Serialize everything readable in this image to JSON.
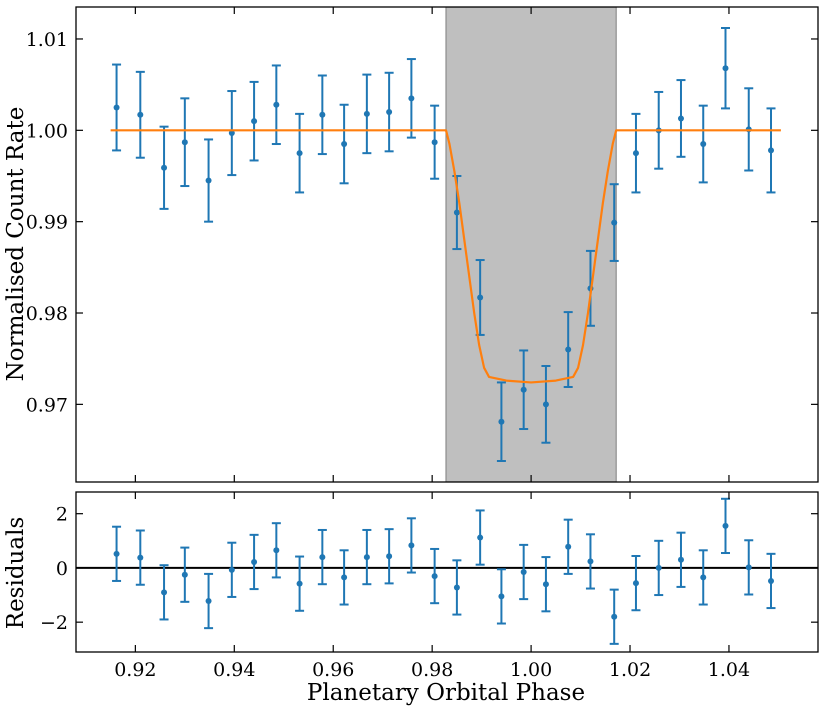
{
  "chart_data": [
    {
      "type": "scatter",
      "title": "",
      "xlabel": "Planetary Orbital Phase",
      "ylabel": "Normalised Count Rate",
      "xlim": [
        0.908,
        1.058
      ],
      "ylim": [
        0.9615,
        1.0135
      ],
      "xticks": [
        0.92,
        0.94,
        0.96,
        0.98,
        1.0,
        1.02,
        1.04
      ],
      "xtick_labels": [
        "0.92",
        "0.94",
        "0.96",
        "0.98",
        "1.00",
        "1.02",
        "1.04"
      ],
      "yticks": [
        0.97,
        0.98,
        0.99,
        1.0,
        1.01
      ],
      "ytick_labels": [
        "0.97",
        "0.98",
        "0.99",
        "1.00",
        "1.01"
      ],
      "shaded_region": {
        "x": [
          0.9828,
          1.0172
        ],
        "color": "#bfbfbf"
      },
      "series": [
        {
          "kind": "errorbar",
          "color": "#1f77b4",
          "x": [
            0.9162,
            0.921,
            0.9258,
            0.93,
            0.9348,
            0.9395,
            0.944,
            0.9485,
            0.9532,
            0.9578,
            0.9622,
            0.9668,
            0.9713,
            0.9758,
            0.9805,
            0.985,
            0.9897,
            0.994,
            0.9985,
            1.003,
            1.0075,
            1.012,
            1.0168,
            1.0212,
            1.0258,
            1.0303,
            1.0348,
            1.0393,
            1.044,
            1.0485
          ],
          "y": [
            1.0025,
            1.0017,
            0.9959,
            0.9987,
            0.9945,
            0.9997,
            1.001,
            1.0028,
            0.9975,
            1.0017,
            0.9985,
            1.0018,
            1.002,
            1.0035,
            0.9987,
            0.991,
            0.9817,
            0.9681,
            0.9716,
            0.97,
            0.976,
            0.9827,
            0.9899,
            0.9975,
            1.0,
            1.0013,
            0.9985,
            1.0068,
            1.0001,
            0.9978
          ],
          "yerr": [
            0.0047,
            0.0047,
            0.0045,
            0.0048,
            0.0045,
            0.0046,
            0.0043,
            0.0043,
            0.0043,
            0.0043,
            0.0043,
            0.0043,
            0.0043,
            0.0043,
            0.004,
            0.004,
            0.0041,
            0.0043,
            0.0043,
            0.0042,
            0.0041,
            0.0041,
            0.0042,
            0.0043,
            0.0042,
            0.0042,
            0.0042,
            0.0044,
            0.0045,
            0.0046
          ]
        },
        {
          "kind": "line",
          "color": "#ff7f0e",
          "x": [
            0.915,
            0.9828,
            0.9835,
            0.9845,
            0.9855,
            0.9865,
            0.9875,
            0.9885,
            0.9895,
            0.9905,
            0.9915,
            0.995,
            1.0,
            1.005,
            1.0085,
            1.0095,
            1.0105,
            1.0115,
            1.0125,
            1.0135,
            1.0145,
            1.0155,
            1.0165,
            1.0172,
            1.0505
          ],
          "y": [
            1.0,
            1.0,
            0.9985,
            0.9955,
            0.992,
            0.988,
            0.984,
            0.98,
            0.9765,
            0.974,
            0.973,
            0.9726,
            0.9724,
            0.9726,
            0.973,
            0.974,
            0.9765,
            0.98,
            0.984,
            0.988,
            0.992,
            0.9955,
            0.9985,
            1.0,
            1.0
          ]
        }
      ]
    },
    {
      "type": "scatter",
      "title": "",
      "xlabel": "Planetary Orbital Phase",
      "ylabel": "Residuals",
      "xlim": [
        0.908,
        1.058
      ],
      "ylim": [
        -3.1,
        2.8
      ],
      "yticks": [
        -2,
        0,
        2
      ],
      "ytick_labels": [
        "−2",
        "0",
        "2"
      ],
      "zero_line": true,
      "series": [
        {
          "kind": "errorbar",
          "color": "#1f77b4",
          "x": [
            0.9162,
            0.921,
            0.9258,
            0.93,
            0.9348,
            0.9395,
            0.944,
            0.9485,
            0.9532,
            0.9578,
            0.9622,
            0.9668,
            0.9713,
            0.9758,
            0.9805,
            0.985,
            0.9897,
            0.994,
            0.9985,
            1.003,
            1.0075,
            1.012,
            1.0168,
            1.0212,
            1.0258,
            1.0303,
            1.0348,
            1.0393,
            1.044,
            1.0485
          ],
          "y": [
            0.52,
            0.38,
            -0.9,
            -0.25,
            -1.22,
            -0.07,
            0.22,
            0.65,
            -0.58,
            0.4,
            -0.35,
            0.4,
            0.43,
            0.83,
            -0.3,
            -0.72,
            1.12,
            -1.05,
            -0.15,
            -0.6,
            0.78,
            0.24,
            -1.8,
            -0.56,
            0.0,
            0.3,
            -0.35,
            1.55,
            0.02,
            -0.48
          ],
          "yerr": [
            1.0,
            1.0,
            1.0,
            1.0,
            1.0,
            1.0,
            1.0,
            1.0,
            1.0,
            1.0,
            1.0,
            1.0,
            1.0,
            1.0,
            1.0,
            1.0,
            1.0,
            1.0,
            1.0,
            1.0,
            1.0,
            1.0,
            1.0,
            1.0,
            1.0,
            1.0,
            1.0,
            1.0,
            1.0,
            1.0
          ]
        }
      ]
    }
  ]
}
